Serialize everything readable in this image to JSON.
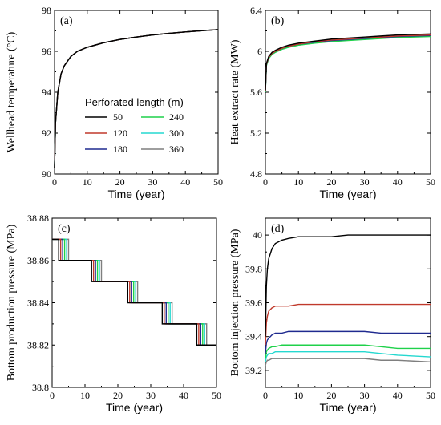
{
  "chart_data": [
    {
      "panel": "(a)",
      "type": "line",
      "xlabel": "Time (year)",
      "ylabel": "Wellhead temperature (°C)",
      "xlim": [
        0,
        50
      ],
      "ylim": [
        90,
        98
      ],
      "xticks": [
        "0",
        "10",
        "20",
        "30",
        "40",
        "50"
      ],
      "yticks": [
        "90",
        "92",
        "94",
        "96",
        "98"
      ],
      "legend": {
        "title": "Perforated length (m)",
        "placement": "center-left"
      },
      "series": [
        {
          "name": "50",
          "color": "#000000",
          "x": [
            0,
            0.3,
            1,
            2,
            3,
            5,
            7,
            10,
            15,
            20,
            25,
            30,
            35,
            40,
            45,
            50
          ],
          "y": [
            90.3,
            92.5,
            94.0,
            94.9,
            95.3,
            95.75,
            96.0,
            96.2,
            96.42,
            96.58,
            96.7,
            96.8,
            96.88,
            96.95,
            97.01,
            97.06
          ]
        },
        {
          "name": "120",
          "color": "#c0392b",
          "x": [
            0,
            0.3,
            1,
            2,
            3,
            5,
            7,
            10,
            15,
            20,
            25,
            30,
            35,
            40,
            45,
            50
          ],
          "y": [
            90.3,
            92.5,
            94.0,
            94.9,
            95.3,
            95.75,
            96.0,
            96.2,
            96.42,
            96.58,
            96.7,
            96.8,
            96.88,
            96.95,
            97.01,
            97.06
          ]
        },
        {
          "name": "180",
          "color": "#1f2a8f",
          "x": [
            0,
            0.3,
            1,
            2,
            3,
            5,
            7,
            10,
            15,
            20,
            25,
            30,
            35,
            40,
            45,
            50
          ],
          "y": [
            90.3,
            92.5,
            94.0,
            94.9,
            95.3,
            95.75,
            96.0,
            96.2,
            96.42,
            96.58,
            96.7,
            96.8,
            96.88,
            96.95,
            97.01,
            97.06
          ]
        },
        {
          "name": "240",
          "color": "#1fd14a",
          "x": [
            0,
            0.3,
            1,
            2,
            3,
            5,
            7,
            10,
            15,
            20,
            25,
            30,
            35,
            40,
            45,
            50
          ],
          "y": [
            90.3,
            92.5,
            94.0,
            94.9,
            95.3,
            95.75,
            96.0,
            96.2,
            96.42,
            96.58,
            96.7,
            96.8,
            96.88,
            96.95,
            97.01,
            97.06
          ]
        },
        {
          "name": "300",
          "color": "#25d8d0",
          "x": [
            0,
            0.3,
            1,
            2,
            3,
            5,
            7,
            10,
            15,
            20,
            25,
            30,
            35,
            40,
            45,
            50
          ],
          "y": [
            90.3,
            92.5,
            94.0,
            94.9,
            95.3,
            95.75,
            96.0,
            96.2,
            96.42,
            96.58,
            96.7,
            96.8,
            96.88,
            96.95,
            97.01,
            97.06
          ]
        },
        {
          "name": "360",
          "color": "#7f7f7f",
          "x": [
            0,
            0.3,
            1,
            2,
            3,
            5,
            7,
            10,
            15,
            20,
            25,
            30,
            35,
            40,
            45,
            50
          ],
          "y": [
            90.3,
            92.5,
            94.0,
            94.9,
            95.3,
            95.75,
            96.0,
            96.2,
            96.42,
            96.58,
            96.7,
            96.8,
            96.88,
            96.95,
            97.01,
            97.06
          ]
        }
      ]
    },
    {
      "panel": "(b)",
      "type": "line",
      "xlabel": "Time (year)",
      "ylabel": "Heat extract rate (MW)",
      "xlim": [
        0,
        50
      ],
      "ylim": [
        4.8,
        6.4
      ],
      "xticks": [
        "0",
        "10",
        "20",
        "30",
        "40",
        "50"
      ],
      "yticks": [
        "4.8",
        "5.2",
        "5.6",
        "6",
        "6.4"
      ],
      "series": [
        {
          "name": "50",
          "color": "#000000",
          "x": [
            0,
            0.3,
            1,
            2,
            3,
            5,
            7,
            10,
            15,
            20,
            25,
            30,
            35,
            40,
            45,
            50
          ],
          "y": [
            5.62,
            5.88,
            5.95,
            5.99,
            6.01,
            6.04,
            6.06,
            6.08,
            6.1,
            6.12,
            6.13,
            6.14,
            6.15,
            6.16,
            6.165,
            6.17
          ]
        },
        {
          "name": "120",
          "color": "#c0392b",
          "x": [
            0,
            0.3,
            1,
            2,
            3,
            5,
            7,
            10,
            15,
            20,
            25,
            30,
            35,
            40,
            45,
            50
          ],
          "y": [
            5.61,
            5.87,
            5.94,
            5.98,
            6.0,
            6.03,
            6.05,
            6.07,
            6.095,
            6.11,
            6.12,
            6.13,
            6.14,
            6.15,
            6.155,
            6.16
          ]
        },
        {
          "name": "180",
          "color": "#1f2a8f",
          "x": [
            0,
            0.3,
            1,
            2,
            3,
            5,
            7,
            10,
            15,
            20,
            25,
            30,
            35,
            40,
            45,
            50
          ],
          "y": [
            5.61,
            5.87,
            5.94,
            5.98,
            6.0,
            6.03,
            6.05,
            6.07,
            6.09,
            6.105,
            6.115,
            6.125,
            6.135,
            6.145,
            6.15,
            6.155
          ]
        },
        {
          "name": "240",
          "color": "#1fd14a",
          "x": [
            0,
            0.3,
            1,
            2,
            3,
            5,
            7,
            10,
            15,
            20,
            25,
            30,
            35,
            40,
            45,
            50
          ],
          "y": [
            5.6,
            5.86,
            5.93,
            5.97,
            5.99,
            6.02,
            6.04,
            6.06,
            6.08,
            6.095,
            6.105,
            6.115,
            6.125,
            6.135,
            6.14,
            6.145
          ]
        },
        {
          "name": "300",
          "color": "#25d8d0",
          "x": [
            0,
            0.3,
            1,
            2,
            3,
            5,
            7,
            10,
            15,
            20,
            25,
            30,
            35,
            40,
            45,
            50
          ],
          "y": [
            5.6,
            5.86,
            5.93,
            5.97,
            5.99,
            6.02,
            6.04,
            6.06,
            6.085,
            6.1,
            6.11,
            6.12,
            6.13,
            6.14,
            6.145,
            6.15
          ]
        },
        {
          "name": "360",
          "color": "#7f7f7f",
          "x": [
            0,
            0.3,
            1,
            2,
            3,
            5,
            7,
            10,
            15,
            20,
            25,
            30,
            35,
            40,
            45,
            50
          ],
          "y": [
            5.6,
            5.87,
            5.94,
            5.98,
            6.0,
            6.03,
            6.05,
            6.07,
            6.09,
            6.105,
            6.115,
            6.125,
            6.135,
            6.145,
            6.15,
            6.155
          ]
        }
      ]
    },
    {
      "panel": "(c)",
      "type": "line",
      "xlabel": "Time (year)",
      "ylabel": "Bottom production pressure (MPa)",
      "xlim": [
        0,
        50
      ],
      "ylim": [
        38.8,
        38.88
      ],
      "xticks": [
        "0",
        "10",
        "20",
        "30",
        "40",
        "50"
      ],
      "yticks": [
        "38.8",
        "38.82",
        "38.84",
        "38.86",
        "38.88"
      ],
      "step_levels": [
        38.87,
        38.86,
        38.85,
        38.84,
        38.83,
        38.82
      ],
      "series": [
        {
          "name": "50",
          "color": "#000000",
          "step_times": [
            2.0,
            12.0,
            23.0,
            33.5,
            44.0
          ]
        },
        {
          "name": "120",
          "color": "#c0392b",
          "step_times": [
            2.6,
            12.6,
            23.6,
            34.1,
            44.6
          ]
        },
        {
          "name": "180",
          "color": "#1f2a8f",
          "step_times": [
            3.2,
            13.2,
            24.2,
            34.7,
            45.2
          ]
        },
        {
          "name": "240",
          "color": "#1fd14a",
          "step_times": [
            3.8,
            13.8,
            24.8,
            35.3,
            45.8
          ]
        },
        {
          "name": "300",
          "color": "#25d8d0",
          "step_times": [
            4.4,
            14.4,
            25.4,
            35.9,
            46.4
          ]
        },
        {
          "name": "360",
          "color": "#7f7f7f",
          "step_times": [
            5.0,
            15.0,
            26.0,
            36.5,
            47.0
          ]
        }
      ]
    },
    {
      "panel": "(d)",
      "type": "line",
      "xlabel": "Time (year)",
      "ylabel": "Bottom injection pressure (MPa)",
      "xlim": [
        0,
        50
      ],
      "ylim": [
        39.1,
        40.1
      ],
      "xticks": [
        "0",
        "10",
        "20",
        "30",
        "40",
        "50"
      ],
      "yticks": [
        "39.2",
        "39.4",
        "39.6",
        "39.8",
        "40"
      ],
      "series": [
        {
          "name": "50",
          "color": "#000000",
          "x": [
            0,
            0.3,
            0.6,
            1,
            2,
            3,
            5,
            7,
            10,
            15,
            20,
            25,
            50
          ],
          "y": [
            39.4,
            39.7,
            39.8,
            39.86,
            39.92,
            39.95,
            39.97,
            39.98,
            39.99,
            39.99,
            39.99,
            40.0,
            40.0
          ]
        },
        {
          "name": "120",
          "color": "#c0392b",
          "x": [
            0,
            0.3,
            0.6,
            1,
            2,
            3,
            5,
            7,
            10,
            15,
            20,
            25,
            50
          ],
          "y": [
            39.35,
            39.48,
            39.52,
            39.55,
            39.57,
            39.58,
            39.58,
            39.58,
            39.59,
            39.59,
            39.59,
            39.59,
            39.59
          ]
        },
        {
          "name": "180",
          "color": "#1f2a8f",
          "x": [
            0,
            0.3,
            0.6,
            1,
            2,
            3,
            5,
            7,
            10,
            30,
            35,
            40,
            50
          ],
          "y": [
            39.3,
            39.36,
            39.38,
            39.39,
            39.41,
            39.42,
            39.42,
            39.43,
            39.43,
            39.43,
            39.42,
            39.42,
            39.42
          ]
        },
        {
          "name": "240",
          "color": "#1fd14a",
          "x": [
            0,
            0.3,
            0.6,
            1,
            2,
            3,
            5,
            7,
            10,
            30,
            35,
            40,
            50
          ],
          "y": [
            39.27,
            39.31,
            39.32,
            39.33,
            39.34,
            39.34,
            39.35,
            39.35,
            39.35,
            39.35,
            39.34,
            39.33,
            39.33
          ]
        },
        {
          "name": "300",
          "color": "#25d8d0",
          "x": [
            0,
            0.3,
            0.6,
            1,
            2,
            3,
            5,
            7,
            10,
            30,
            35,
            40,
            50
          ],
          "y": [
            39.25,
            39.28,
            39.29,
            39.3,
            39.3,
            39.31,
            39.31,
            39.31,
            39.31,
            39.31,
            39.3,
            39.29,
            39.28
          ]
        },
        {
          "name": "360",
          "color": "#7f7f7f",
          "x": [
            0,
            0.3,
            0.6,
            1,
            2,
            3,
            5,
            7,
            10,
            30,
            35,
            40,
            50
          ],
          "y": [
            39.23,
            39.25,
            39.26,
            39.26,
            39.27,
            39.27,
            39.27,
            39.27,
            39.27,
            39.27,
            39.26,
            39.26,
            39.25
          ]
        }
      ]
    }
  ]
}
